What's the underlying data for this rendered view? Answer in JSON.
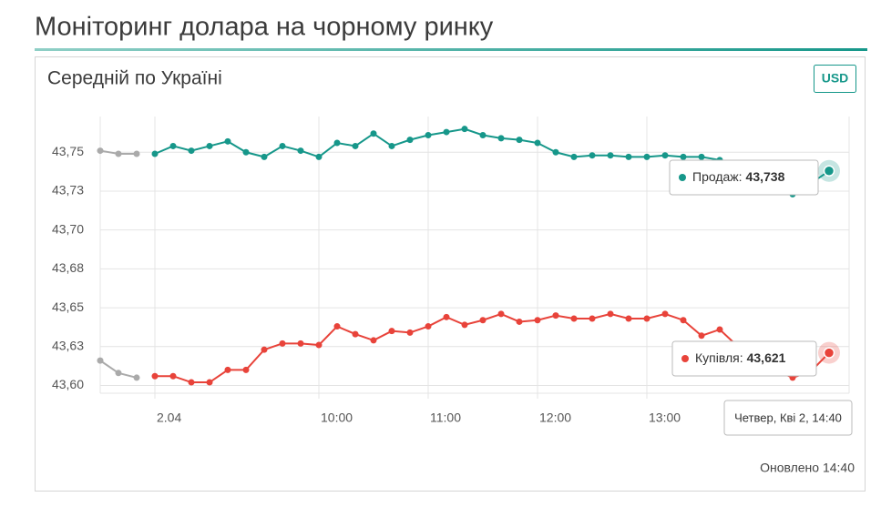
{
  "header": {
    "title": "Моніторинг долара на чорному ринку"
  },
  "panel": {
    "subtitle": "Середній по Україні",
    "currency_button": "USD",
    "updated": "Оновлено 14:40"
  },
  "chart_data": {
    "type": "line",
    "categories": [
      null,
      null,
      null,
      "2.04",
      null,
      null,
      null,
      null,
      null,
      null,
      null,
      null,
      "10:00",
      null,
      null,
      null,
      null,
      null,
      "11:00",
      null,
      null,
      null,
      null,
      null,
      "12:00",
      null,
      null,
      null,
      null,
      null,
      "13:00",
      null,
      null,
      null,
      null,
      null,
      null,
      null,
      null,
      null,
      null
    ],
    "ylim": [
      43.595,
      43.773
    ],
    "yticks": [
      {
        "value": 43.6,
        "label": "43,60"
      },
      {
        "value": 43.625,
        "label": "43,63"
      },
      {
        "value": 43.65,
        "label": "43,65"
      },
      {
        "value": 43.675,
        "label": "43,68"
      },
      {
        "value": 43.7,
        "label": "43,70"
      },
      {
        "value": 43.725,
        "label": "43,73"
      },
      {
        "value": 43.75,
        "label": "43,75"
      }
    ],
    "grid": true,
    "series": [
      {
        "color": "#aaaaaa",
        "values": [
          43.751,
          43.749,
          43.749,
          null,
          null,
          null,
          null,
          null,
          null,
          null,
          null,
          null,
          null,
          null,
          null,
          null,
          null,
          null,
          null,
          null,
          null,
          null,
          null,
          null,
          null,
          null,
          null,
          null,
          null,
          null,
          null,
          null,
          null,
          null,
          null,
          null,
          null,
          null,
          null,
          null,
          null
        ]
      },
      {
        "color": "#aaaaaa",
        "values": [
          43.616,
          43.608,
          43.605,
          null,
          null,
          null,
          null,
          null,
          null,
          null,
          null,
          null,
          null,
          null,
          null,
          null,
          null,
          null,
          null,
          null,
          null,
          null,
          null,
          null,
          null,
          null,
          null,
          null,
          null,
          null,
          null,
          null,
          null,
          null,
          null,
          null,
          null,
          null,
          null,
          null,
          null
        ]
      },
      {
        "name": "Продаж",
        "color": "#16978a",
        "values": [
          null,
          null,
          null,
          43.749,
          43.754,
          43.751,
          43.754,
          43.757,
          43.75,
          43.747,
          43.754,
          43.751,
          43.747,
          43.756,
          43.754,
          43.762,
          43.754,
          43.758,
          43.761,
          43.763,
          43.765,
          43.761,
          43.759,
          43.758,
          43.756,
          43.75,
          43.747,
          43.748,
          43.748,
          43.747,
          43.747,
          43.748,
          43.747,
          43.747,
          43.745,
          43.742,
          43.738,
          43.733,
          43.723,
          43.73,
          43.738
        ]
      },
      {
        "name": "Купівля",
        "color": "#e8433a",
        "values": [
          null,
          null,
          null,
          43.606,
          43.606,
          43.602,
          43.602,
          43.61,
          43.61,
          43.623,
          43.627,
          43.627,
          43.626,
          43.638,
          43.633,
          43.629,
          43.635,
          43.634,
          43.638,
          43.644,
          43.639,
          43.642,
          43.646,
          43.641,
          43.642,
          43.645,
          43.643,
          43.643,
          43.646,
          43.643,
          43.643,
          43.646,
          43.642,
          43.632,
          43.636,
          43.625,
          43.615,
          43.61,
          43.605,
          43.609,
          43.621
        ]
      }
    ],
    "tooltips": [
      {
        "series": 2,
        "label": "Продаж:",
        "value_label": "43,738"
      },
      {
        "series": 3,
        "label": "Купівля:",
        "value_label": "43,621"
      }
    ],
    "x_tooltip": "Четвер, Кві 2, 14:40"
  }
}
